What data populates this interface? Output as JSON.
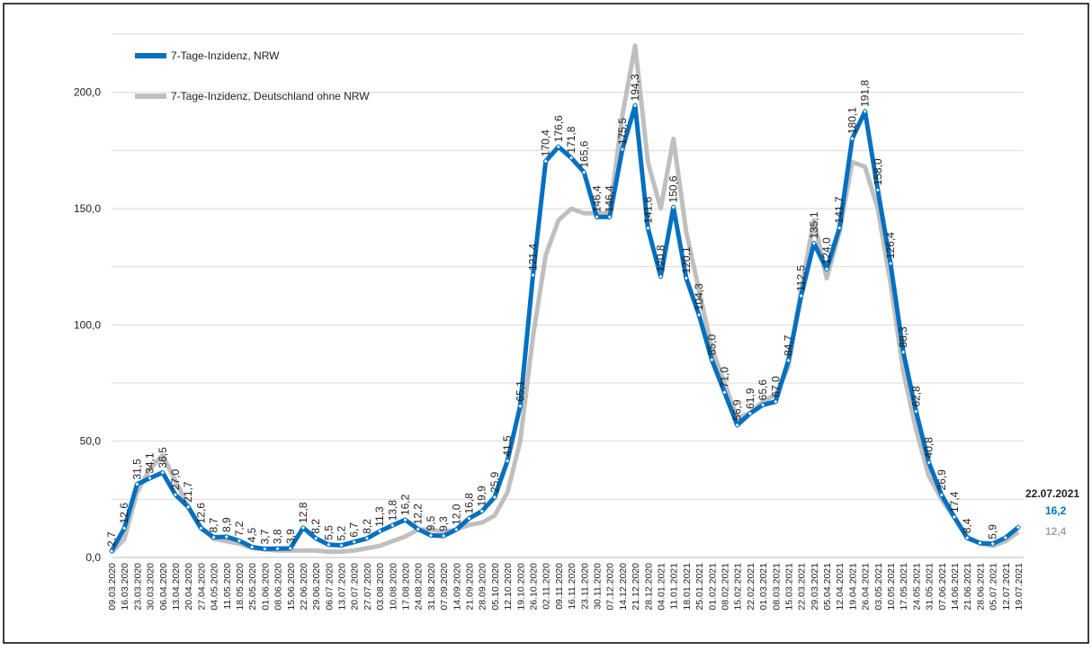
{
  "chart_data": {
    "type": "line",
    "categories": [
      "09.03.2020",
      "16.03.2020",
      "23.03.2020",
      "30.03.2020",
      "06.04.2020",
      "13.04.2020",
      "20.04.2020",
      "27.04.2020",
      "04.05.2020",
      "11.05.2020",
      "18.05.2020",
      "25.05.2020",
      "01.06.2020",
      "08.06.2020",
      "15.06.2020",
      "22.06.2020",
      "29.06.2020",
      "06.07.2020",
      "13.07.2020",
      "20.07.2020",
      "27.07.2020",
      "03.08.2020",
      "10.08.2020",
      "17.08.2020",
      "24.08.2020",
      "31.08.2020",
      "07.09.2020",
      "14.09.2020",
      "21.09.2020",
      "28.09.2020",
      "05.10.2020",
      "12.10.2020",
      "19.10.2020",
      "26.10.2020",
      "02.11.2020",
      "09.11.2020",
      "16.11.2020",
      "23.11.2020",
      "30.11.2020",
      "07.12.2020",
      "14.12.2020",
      "21.12.2020",
      "28.12.2020",
      "04.01.2021",
      "11.01.2021",
      "18.01.2021",
      "25.01.2021",
      "01.02.2021",
      "08.02.2021",
      "15.02.2021",
      "22.02.2021",
      "01.03.2021",
      "08.03.2021",
      "15.03.2021",
      "22.03.2021",
      "29.03.2021",
      "05.04.2021",
      "12.04.2021",
      "19.04.2021",
      "26.04.2021",
      "03.05.2021",
      "10.05.2021",
      "17.05.2021",
      "24.05.2021",
      "31.05.2021",
      "07.06.2021",
      "14.06.2021",
      "21.06.2021",
      "28.06.2021",
      "05.07.2021",
      "12.07.2021",
      "19.07.2021"
    ],
    "series": [
      {
        "name": "7-Tage-Inzidenz, Deutschland ohne NRW",
        "color": "#bfbfbf",
        "values": [
          2,
          8,
          28,
          38,
          44,
          33,
          22,
          13,
          8,
          7,
          6,
          4,
          3.5,
          3,
          3,
          3,
          3,
          2.5,
          2.5,
          3,
          4,
          5,
          7,
          9,
          12,
          12,
          11,
          12,
          14,
          15,
          18,
          28,
          50,
          95,
          130,
          145,
          150,
          148,
          148,
          148,
          190,
          220,
          170,
          150,
          180,
          140,
          115,
          90,
          75,
          60,
          62,
          67,
          70,
          82,
          115,
          145,
          120,
          140,
          170,
          168,
          150,
          118,
          80,
          55,
          35,
          25,
          17,
          9,
          6,
          5,
          7,
          11
        ]
      },
      {
        "name": "7-Tage-Inzidenz, NRW",
        "color": "#0070c0",
        "values": [
          2.7,
          12.6,
          31.5,
          34.1,
          36.5,
          27.0,
          21.7,
          12.6,
          8.7,
          8.9,
          7.2,
          4.5,
          3.7,
          3.8,
          3.9,
          12.8,
          8.2,
          5.5,
          5.2,
          6.7,
          8.2,
          11.3,
          13.8,
          16.2,
          12.2,
          9.5,
          9.3,
          12.0,
          16.8,
          19.9,
          25.9,
          41.5,
          65.1,
          121.4,
          170.4,
          176.6,
          171.8,
          165.6,
          146.4,
          146.4,
          175.5,
          194.3,
          141.6,
          120.8,
          150.6,
          120.1,
          104.3,
          85.0,
          71.0,
          56.9,
          61.9,
          65.6,
          67.0,
          84.7,
          112.5,
          135.1,
          124.0,
          141.7,
          180.1,
          191.8,
          158.0,
          126.4,
          88.3,
          62.8,
          40.8,
          26.9,
          17.4,
          8.4,
          6.2,
          5.9,
          8.5,
          13
        ],
        "value_labels": [
          "2,7",
          "12,6",
          "31,5",
          "34,1",
          "36,5",
          "27,0",
          "21,7",
          "12,6",
          "8,7",
          "8,9",
          "7,2",
          "4,5",
          "3,7",
          "3,8",
          "3,9",
          "12,8",
          "8,2",
          "5,5",
          "5,2",
          "6,7",
          "8,2",
          "11,3",
          "13,8",
          "16,2",
          "12,2",
          "9,5",
          "9,3",
          "12,0",
          "16,8",
          "19,9",
          "25,9",
          "41,5",
          "65,1",
          "121,4",
          "170,4",
          "176,6",
          "171,8",
          "165,6",
          "146,4",
          "146,4",
          "175,5",
          "194,3",
          "141,6",
          "120,8",
          "150,6",
          "120,1",
          "104,3",
          "85,0",
          "71,0",
          "56,9",
          "61,9",
          "65,6",
          "67,0",
          "84,7",
          "112,5",
          "135,1",
          "124,0",
          "141,7",
          "180,1",
          "191,8",
          "158,0",
          "126,4",
          "88,3",
          "62,8",
          "40,8",
          "26,9",
          "17,4",
          "8,4",
          null,
          "5,9",
          null,
          null
        ]
      }
    ],
    "ylim": [
      0,
      225
    ],
    "yticks": [
      {
        "value": 0,
        "label": "0,0"
      },
      {
        "value": 50,
        "label": "50,0"
      },
      {
        "value": 100,
        "label": "100,0"
      },
      {
        "value": 150,
        "label": "150,0"
      },
      {
        "value": 200,
        "label": "200,0"
      }
    ],
    "minor_yticks": [
      25,
      75,
      125,
      175,
      225
    ],
    "grid": true,
    "legend": "top-left",
    "annotation": {
      "date": "22.07.2021",
      "last_nrw": "16,2",
      "last_rest": "12,4"
    }
  }
}
